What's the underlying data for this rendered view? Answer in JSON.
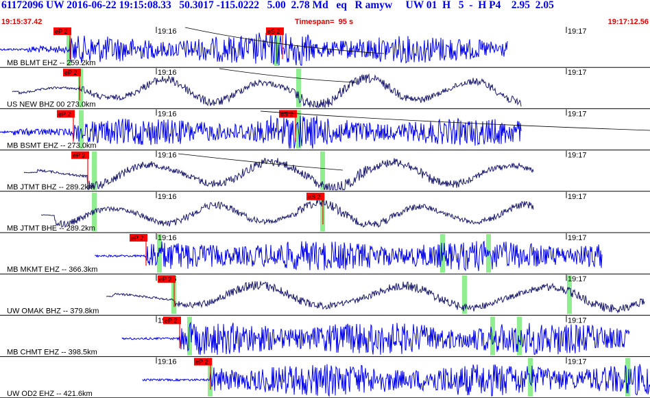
{
  "header": {
    "title": "61172096 UW 2016-06-22 19:15:08.33   50.3017 -115.0222   5.00  2.78 Md   eq   R amyw     UW 01  H   5  -  H P4    2.95  2.05",
    "start_time": "19:15:37.42",
    "timespan": "Timespan=  95 s",
    "end_time": "19:17:12.56"
  },
  "colors": {
    "trace_blue": "#0000e8",
    "trace_navy": "#1a1a6e",
    "pick_red": "#ff0000",
    "phase_green": "#90ee90",
    "header_blue": "#0000ee",
    "header_red": "#e00000",
    "divider": "#000000"
  },
  "time_ticks": [
    "19:16",
    "19:17"
  ],
  "traces": [
    {
      "label": "MB BLMT EHZ -- 259.2km",
      "color": "blue",
      "p_pick": "eP 2",
      "s_pick": "eS 2"
    },
    {
      "label": "US NEW BHZ 00 273.0km",
      "color": "navy",
      "p_pick": "eP 2"
    },
    {
      "label": "MB BSMT EHZ -- 273.0km",
      "color": "blue",
      "p_pick": "eP 2",
      "s_pick": "eS 2"
    },
    {
      "label": "MB JTMT BHZ -- 289.2km",
      "color": "navy",
      "p_pick": "eP 2"
    },
    {
      "label": "MB JTMT BHE -- 289.2km",
      "color": "navy",
      "s_pick": "eS 2"
    },
    {
      "label": "MB MKMT EHZ -- 366.3km",
      "color": "blue",
      "p_pick": "eP 2"
    },
    {
      "label": "UW OMAK BHZ -- 379.8km",
      "color": "navy",
      "p_pick": "eP 2"
    },
    {
      "label": "MB CHMT EHZ -- 398.5km",
      "color": "blue",
      "p_pick": "eP 2"
    },
    {
      "label": "UW OD2 EHZ -- 421.6km",
      "color": "blue",
      "p_pick": "eP 2"
    }
  ]
}
